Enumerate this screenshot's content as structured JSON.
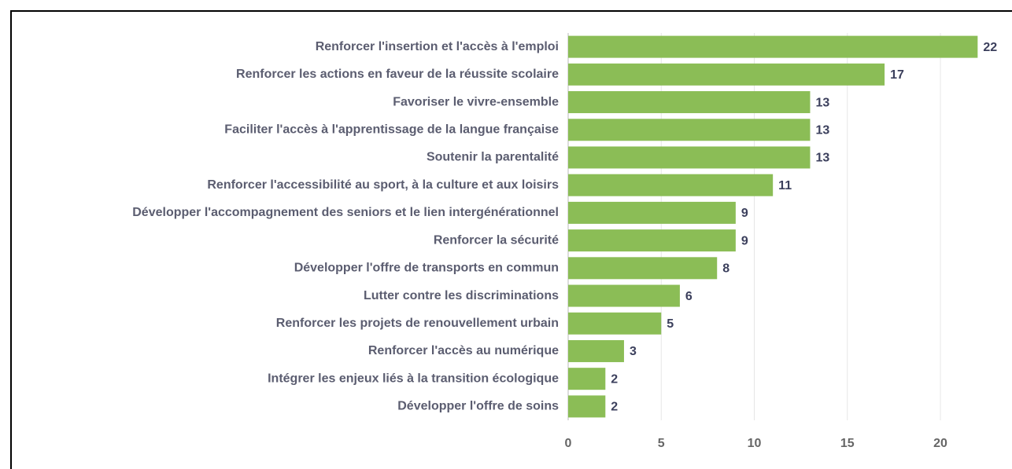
{
  "chart_data": {
    "type": "bar",
    "orientation": "horizontal",
    "categories": [
      "Renforcer l'insertion et l'accès à l'emploi",
      "Renforcer les actions en faveur de la réussite scolaire",
      "Favoriser le vivre-ensemble",
      "Faciliter l'accès à l'apprentissage de la langue française",
      "Soutenir la parentalité",
      "Renforcer l'accessibilité au sport, à la culture et aux loisirs",
      "Développer l'accompagnement des seniors et le lien intergénérationnel",
      "Renforcer la sécurité",
      "Développer l'offre de transports en commun",
      "Lutter contre les discriminations",
      "Renforcer les projets de renouvellement urbain",
      "Renforcer l'accès au numérique",
      "Intégrer les enjeux liés à la transition écologique",
      "Développer l'offre de soins"
    ],
    "values": [
      22,
      17,
      13,
      13,
      13,
      11,
      9,
      9,
      8,
      6,
      5,
      3,
      2,
      2
    ],
    "color": "#8bbd56",
    "xlim": [
      0,
      23
    ],
    "xticks": [
      0,
      5,
      10,
      15,
      20
    ],
    "grid": true
  }
}
